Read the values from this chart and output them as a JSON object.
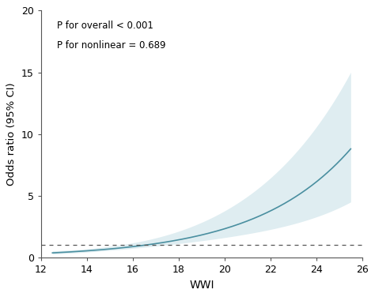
{
  "title": "",
  "xlabel": "WWI",
  "ylabel": "Odds ratio (95% CI)",
  "xlim": [
    12,
    26
  ],
  "ylim": [
    0,
    20
  ],
  "yticks": [
    0,
    5,
    10,
    15,
    20
  ],
  "xticks": [
    12,
    14,
    16,
    18,
    20,
    22,
    24,
    26
  ],
  "annotation_line1": "P for overall < 0.001",
  "annotation_line2": "P for nonlinear = 0.689",
  "ref_line_y": 1.0,
  "line_color": "#4a8fa0",
  "ci_color": "#c5dfe6",
  "dashed_color": "#555555",
  "background_color": "#ffffff",
  "x_start": 12.5,
  "x_end": 25.5
}
